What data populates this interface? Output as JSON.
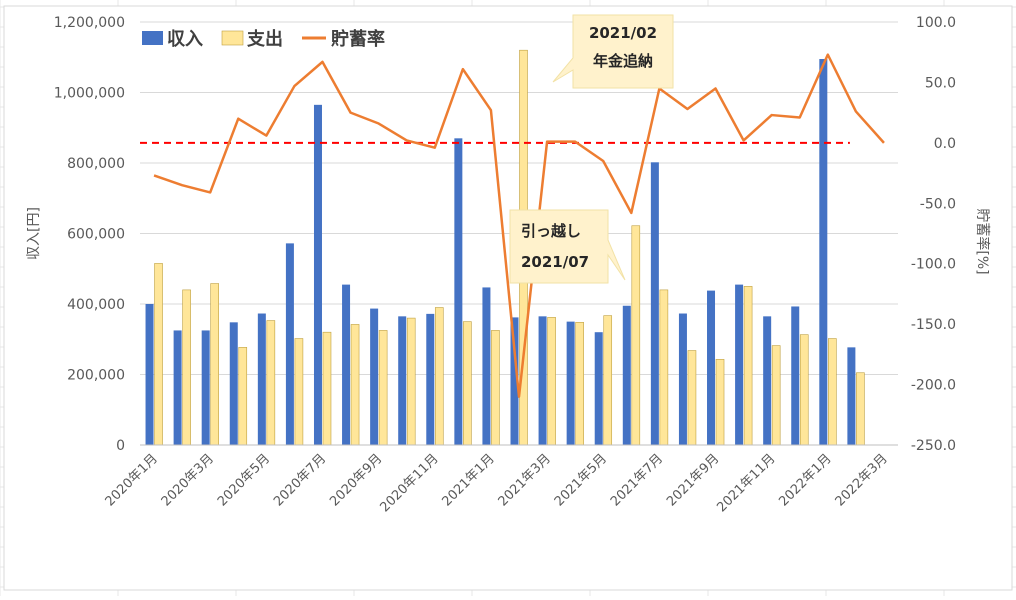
{
  "chart_data": {
    "type": "bar+line",
    "title": "",
    "categories": [
      "2020年1月",
      "2020年2月",
      "2020年3月",
      "2020年4月",
      "2020年5月",
      "2020年6月",
      "2020年7月",
      "2020年8月",
      "2020年9月",
      "2020年10月",
      "2020年11月",
      "2020年12月",
      "2021年1月",
      "2021年2月",
      "2021年3月",
      "2021年4月",
      "2021年5月",
      "2021年6月",
      "2021年7月",
      "2021年8月",
      "2021年9月",
      "2021年10月",
      "2021年11月",
      "2021年12月",
      "2022年1月",
      "2022年2月",
      "2022年3月"
    ],
    "tick_labels": [
      "2020年1月",
      "2020年3月",
      "2020年5月",
      "2020年7月",
      "2020年9月",
      "2020年11月",
      "2021年1月",
      "2021年3月",
      "2021年5月",
      "2021年7月",
      "2021年9月",
      "2021年11月",
      "2022年1月",
      "2022年3月"
    ],
    "series": [
      {
        "name": "収入",
        "type": "bar",
        "axis": "left",
        "color": "#4472c4",
        "values": [
          400000,
          325000,
          325000,
          348000,
          373000,
          572000,
          965000,
          455000,
          387000,
          365000,
          372000,
          870000,
          447000,
          362000,
          365000,
          350000,
          320000,
          395000,
          802000,
          373000,
          438000,
          455000,
          365000,
          393000,
          1095000,
          277000,
          null
        ]
      },
      {
        "name": "支出",
        "type": "bar",
        "axis": "left",
        "color": "#ffe699",
        "values": [
          515000,
          440000,
          458000,
          277000,
          353000,
          302000,
          320000,
          342000,
          325000,
          360000,
          390000,
          350000,
          325000,
          1120000,
          362000,
          348000,
          367000,
          622000,
          440000,
          268000,
          243000,
          450000,
          282000,
          313000,
          302000,
          205000,
          null
        ]
      },
      {
        "name": "貯蓄率",
        "type": "line",
        "axis": "right",
        "color": "#ed7d31",
        "values": [
          -27,
          -35,
          -41,
          20,
          6,
          47,
          67,
          25,
          16,
          2,
          -4,
          61,
          27,
          -210,
          1,
          1,
          -15,
          -58,
          45,
          28,
          45,
          2,
          23,
          21,
          73,
          26,
          0
        ]
      }
    ],
    "left_axis": {
      "label": "収入[円]",
      "min": 0,
      "max": 1200000,
      "step": 200000,
      "tick_labels": [
        "0",
        "200,000",
        "400,000",
        "600,000",
        "800,000",
        "1,000,000",
        "1,200,000"
      ]
    },
    "right_axis": {
      "label": "貯蓄率[%]",
      "min": -250,
      "max": 100,
      "step": 50,
      "tick_labels": [
        "-250.0",
        "-200.0",
        "-150.0",
        "-100.0",
        "-50.0",
        "0.0",
        "50.0",
        "100.0"
      ]
    },
    "reference_line": {
      "axis": "right",
      "value": 0,
      "color": "#ff0000",
      "style": "dashed"
    },
    "legend": {
      "position": "top-left",
      "entries": [
        "収入",
        "支出",
        "貯蓄率"
      ]
    },
    "callouts": [
      {
        "lines": [
          "2021/02",
          "年金追納"
        ]
      },
      {
        "lines": [
          "引っ越し",
          "2021/07"
        ]
      }
    ],
    "grid": true
  }
}
